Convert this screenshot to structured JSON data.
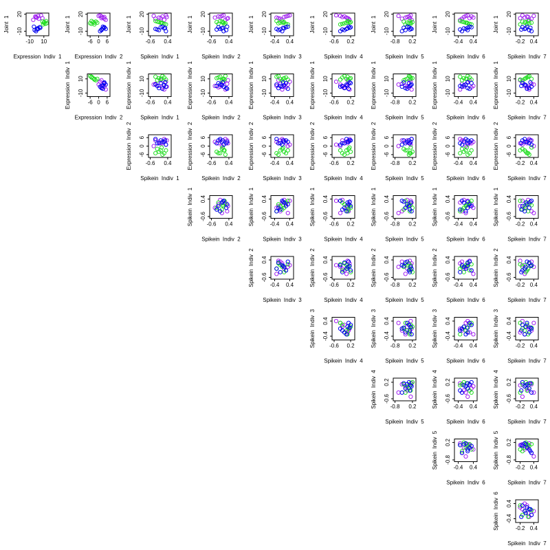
{
  "chart_data": {
    "type": "scatter",
    "variables": [
      {
        "label": "Joint  1",
        "lim": [
          -18,
          22
        ],
        "ticks": [
          -10,
          20
        ]
      },
      {
        "label": "Expression  Indiv  1",
        "lim": [
          -15,
          17
        ],
        "ticks": [
          -10,
          10
        ]
      },
      {
        "label": "Expression  Indiv  2",
        "lim": [
          -8,
          8
        ],
        "ticks": [
          -6,
          0,
          6
        ]
      },
      {
        "label": "Spikein  Indiv  1",
        "lim": [
          -0.7,
          0.6
        ],
        "ticks": [
          -0.6,
          0.4
        ]
      },
      {
        "label": "Spikein  Indiv  2",
        "lim": [
          -0.7,
          0.6
        ],
        "ticks": [
          -0.6,
          0.4
        ]
      },
      {
        "label": "Spikein  Indiv  3",
        "lim": [
          -0.6,
          0.6
        ],
        "ticks": [
          -0.4,
          0.4
        ]
      },
      {
        "label": "Spikein  Indiv  4",
        "lim": [
          -0.7,
          0.4
        ],
        "ticks": [
          -0.6,
          0.2
        ]
      },
      {
        "label": "Spikein  Indiv  5",
        "lim": [
          -0.9,
          0.4
        ],
        "ticks": [
          -0.8,
          0.2
        ]
      },
      {
        "label": "Spikein  Indiv  6",
        "lim": [
          -0.6,
          0.6
        ],
        "ticks": [
          -0.4,
          0.4
        ]
      },
      {
        "label": "Spikein  Indiv  7",
        "lim": [
          -0.4,
          0.6
        ],
        "ticks": [
          -0.2,
          0.4
        ]
      }
    ],
    "groups": [
      {
        "color": "#a020f0",
        "values": [
          [
            16,
            12,
            18,
            14,
            10,
            17,
            13,
            15
          ],
          [
            -2,
            3,
            6,
            0,
            -5,
            2,
            8,
            -1
          ],
          [
            2,
            4,
            1,
            3,
            5,
            0,
            2,
            4
          ],
          [
            0.1,
            -0.3,
            0.3,
            -0.1,
            0.2,
            -0.4,
            0.0,
            0.35
          ],
          [
            -0.2,
            0.3,
            0.1,
            -0.4,
            0.2,
            0.0,
            0.35,
            -0.1
          ],
          [
            0.2,
            -0.1,
            0.4,
            -0.3,
            0.0,
            0.3,
            -0.2,
            0.1
          ],
          [
            -0.1,
            0.1,
            -0.5,
            0.0,
            0.15,
            -0.3,
            0.05,
            -0.2
          ],
          [
            0.0,
            -0.4,
            0.1,
            -0.2,
            0.15,
            -0.6,
            0.05,
            -0.1
          ],
          [
            0.3,
            -0.2,
            0.1,
            0.4,
            -0.3,
            0.0,
            0.2,
            -0.1
          ],
          [
            0.1,
            0.3,
            -0.1,
            0.0,
            0.2,
            0.4,
            -0.2,
            0.15
          ]
        ]
      },
      {
        "color": "#22dd22",
        "values": [
          [
            5,
            3,
            7,
            4,
            6,
            2,
            8,
            5
          ],
          [
            10,
            12,
            8,
            14,
            11,
            9,
            13,
            10
          ],
          [
            -3,
            -5,
            -2,
            -6,
            -4,
            -3,
            -5,
            -1
          ],
          [
            0.0,
            0.2,
            -0.2,
            0.1,
            -0.1,
            0.3,
            -0.3,
            0.05
          ],
          [
            0.1,
            -0.2,
            0.0,
            0.2,
            -0.3,
            0.15,
            -0.1,
            0.05
          ],
          [
            -0.1,
            0.2,
            0.0,
            -0.2,
            0.1,
            0.3,
            -0.3,
            0.05
          ],
          [
            0.0,
            -0.2,
            0.1,
            -0.1,
            0.2,
            -0.3,
            0.05,
            0.15
          ],
          [
            -0.1,
            0.1,
            -0.3,
            0.0,
            0.2,
            -0.2,
            0.05,
            0.1
          ],
          [
            0.0,
            0.2,
            -0.2,
            0.1,
            -0.1,
            0.3,
            -0.3,
            0.05
          ],
          [
            0.0,
            0.1,
            -0.1,
            0.2,
            0.05,
            -0.2,
            0.15,
            0.3
          ]
        ]
      },
      {
        "color": "#0000ee",
        "values": [
          [
            -5,
            -8,
            -3,
            -10,
            -6,
            -2,
            -7,
            -4
          ],
          [
            1,
            -3,
            4,
            -1,
            2,
            -4,
            0,
            5
          ],
          [
            3,
            2,
            4,
            1,
            5,
            3,
            2,
            4
          ],
          [
            0.2,
            -0.1,
            0.0,
            0.3,
            -0.3,
            0.1,
            -0.2,
            0.25
          ],
          [
            0.0,
            0.25,
            -0.2,
            0.1,
            -0.1,
            0.3,
            -0.3,
            0.05
          ],
          [
            0.1,
            -0.2,
            0.2,
            0.0,
            -0.3,
            0.3,
            -0.1,
            0.05
          ],
          [
            0.05,
            -0.1,
            0.2,
            -0.3,
            0.0,
            0.1,
            -0.2,
            0.15
          ],
          [
            0.1,
            -0.2,
            0.0,
            -0.4,
            0.15,
            -0.1,
            0.05,
            -0.3
          ],
          [
            -0.1,
            0.1,
            0.3,
            -0.2,
            0.0,
            0.2,
            -0.3,
            0.1
          ],
          [
            0.05,
            0.2,
            -0.1,
            0.3,
            0.0,
            0.1,
            -0.15,
            0.25
          ]
        ]
      }
    ]
  }
}
